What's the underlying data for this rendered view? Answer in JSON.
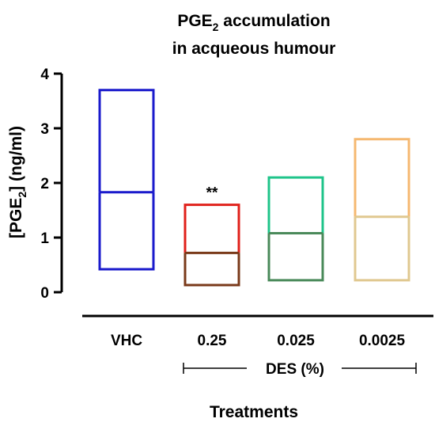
{
  "chart_data": {
    "type": "box",
    "title_line1": "PGE",
    "title_sub": "2",
    "title_line1_rest": " accumulation",
    "title_line2": "in acqueous humour",
    "ylabel_pre": "[PGE",
    "ylabel_sub": "2",
    "ylabel_post": "] (ng/ml)",
    "xlabel": "Treatments",
    "group_label": "DES (%)",
    "ylim": [
      0,
      4
    ],
    "yticks": [
      "0",
      "1",
      "2",
      "3",
      "4"
    ],
    "categories": [
      "VHC",
      "0.25",
      "0.025",
      "0.0025"
    ],
    "boxes": [
      {
        "category": "VHC",
        "min": 0.42,
        "max": 3.7,
        "mean": 1.83,
        "color_top": "#1a1acc",
        "color_bottom": "#1a1acc"
      },
      {
        "category": "0.25",
        "min": 0.13,
        "max": 1.6,
        "mean": 0.72,
        "color_top": "#e0201a",
        "color_bottom": "#7a3a1a"
      },
      {
        "category": "0.025",
        "min": 0.22,
        "max": 2.1,
        "mean": 1.08,
        "color_top": "#1fc48a",
        "color_bottom": "#4a8a5a"
      },
      {
        "category": "0.0025",
        "min": 0.22,
        "max": 2.8,
        "mean": 1.38,
        "color_top": "#f5b870",
        "color_bottom": "#e0c890"
      }
    ],
    "significance": [
      {
        "category": "0.25",
        "label": "**"
      }
    ]
  }
}
